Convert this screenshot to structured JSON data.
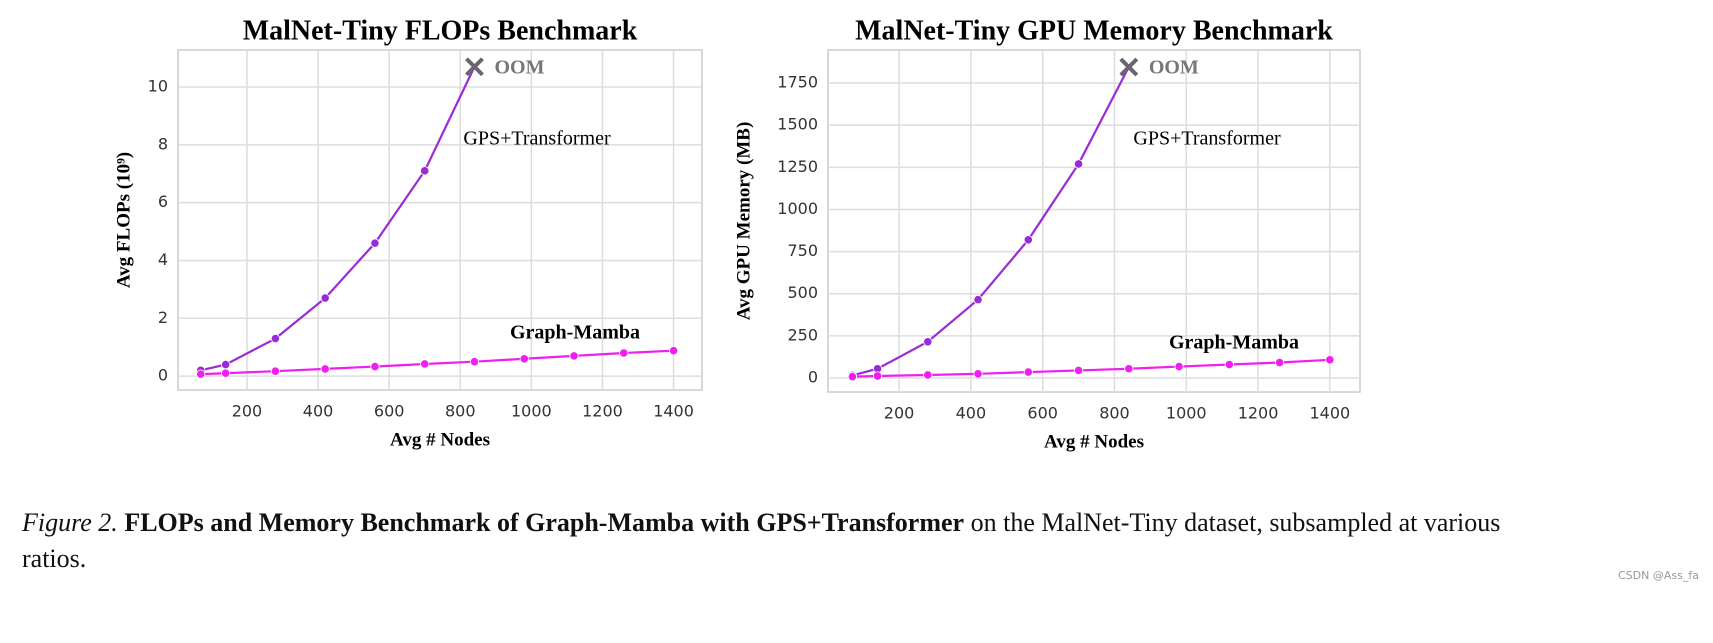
{
  "chart_data": [
    {
      "type": "line",
      "title": "MalNet-Tiny FLOPs Benchmark",
      "xlabel": "Avg # Nodes",
      "ylabel": "Avg FLOPs (10⁹)",
      "xlim": [
        6,
        1480
      ],
      "ylim": [
        -0.48,
        11.28
      ],
      "xticks": [
        200,
        400,
        600,
        800,
        1000,
        1200,
        1400
      ],
      "yticks": [
        0,
        2,
        4,
        6,
        8,
        10
      ],
      "grid": true,
      "series": [
        {
          "name": "GPS+Transformer",
          "color": "#9a2bd6",
          "x": [
            70,
            140,
            280,
            420,
            560,
            700
          ],
          "values": [
            0.2,
            0.4,
            1.3,
            2.7,
            4.6,
            7.1
          ],
          "oom": {
            "label": "OOM",
            "x": 840,
            "y": 10.7
          }
        },
        {
          "name": "Graph-Mamba",
          "color": "#f01ef0",
          "x": [
            70,
            140,
            280,
            420,
            560,
            700,
            840,
            980,
            1120,
            1260,
            1400
          ],
          "values": [
            0.07,
            0.1,
            0.17,
            0.25,
            0.33,
            0.42,
            0.5,
            0.6,
            0.7,
            0.8,
            0.88
          ]
        }
      ]
    },
    {
      "type": "line",
      "title": "MalNet-Tiny GPU Memory Benchmark",
      "xlabel": "Avg # Nodes",
      "ylabel": "Avg GPU Memory (MB)",
      "xlim": [
        2,
        1484
      ],
      "ylim": [
        -83,
        1946
      ],
      "xticks": [
        200,
        400,
        600,
        800,
        1000,
        1200,
        1400
      ],
      "yticks": [
        0,
        250,
        500,
        750,
        1000,
        1250,
        1500,
        1750
      ],
      "grid": true,
      "series": [
        {
          "name": "GPS+Transformer",
          "color": "#9a2bd6",
          "x": [
            70,
            140,
            280,
            420,
            560,
            700
          ],
          "values": [
            15,
            55,
            215,
            465,
            820,
            1270
          ],
          "oom": {
            "label": "OOM",
            "x": 840,
            "y": 1845
          }
        },
        {
          "name": "Graph-Mamba",
          "color": "#f01ef0",
          "x": [
            70,
            140,
            280,
            420,
            560,
            700,
            840,
            980,
            1120,
            1260,
            1400
          ],
          "values": [
            8,
            12,
            18,
            25,
            35,
            45,
            55,
            68,
            80,
            92,
            108
          ]
        }
      ]
    }
  ],
  "caption": {
    "label": "Figure 2.",
    "bold": "FLOPs and Memory Benchmark of Graph-Mamba with GPS+Transformer",
    "text": "on the MalNet-Tiny dataset, subsampled at various ratios."
  },
  "watermark": "CSDN @Ass_fa"
}
